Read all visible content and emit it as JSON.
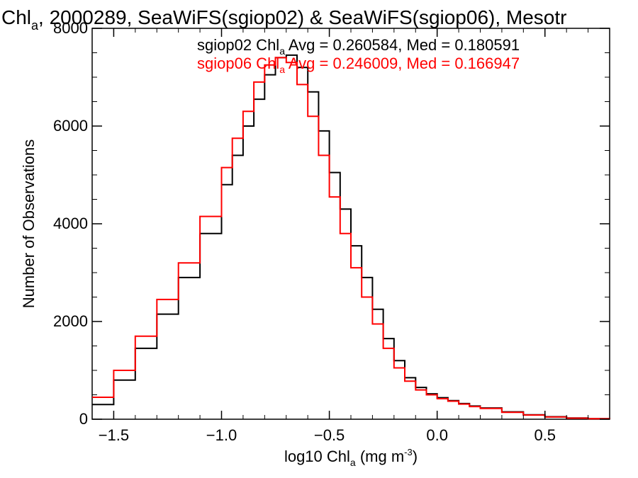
{
  "chart_data": {
    "type": "line",
    "title_main": "Chl",
    "title_sub": "a",
    "title_rest": ", 2000289, SeaWiFS(sgiop02) & SeaWiFS(sgiop06), Mesotr",
    "xlabel_main": "log10 Chl",
    "xlabel_sub": "a",
    "xlabel_units": " (mg m",
    "xlabel_sup": "-3",
    "xlabel_close": ")",
    "ylabel": "Number of Observations",
    "xlim": [
      -1.6,
      0.8
    ],
    "ylim": [
      0,
      8000
    ],
    "x_ticks": [
      -1.5,
      -1.0,
      -0.5,
      0.0,
      0.5
    ],
    "x_tick_labels": [
      "−1.5",
      "−1.0",
      "−0.5",
      "0.0",
      "0.5"
    ],
    "y_ticks": [
      0,
      2000,
      4000,
      6000,
      8000
    ],
    "y_tick_labels": [
      "0",
      "2000",
      "4000",
      "6000",
      "8000"
    ],
    "legend_placement": "top-center",
    "annotations": [
      {
        "line_prefix": "sgiop02 Chl",
        "line_sub": "a",
        "line_rest": " Avg = 0.260584, Med = 0.180591",
        "color": "#000000"
      },
      {
        "line_prefix": "sgiop06 Chl",
        "line_sub": "a",
        "line_rest": " Avg = 0.246009, Med = 0.166947",
        "color": "#ff0000"
      }
    ],
    "series": [
      {
        "name": "sgiop02",
        "color": "#000000",
        "x": [
          -1.6,
          -1.5,
          -1.4,
          -1.3,
          -1.2,
          -1.1,
          -1.0,
          -0.95,
          -0.9,
          -0.85,
          -0.8,
          -0.75,
          -0.7,
          -0.65,
          -0.6,
          -0.55,
          -0.5,
          -0.45,
          -0.4,
          -0.35,
          -0.3,
          -0.25,
          -0.2,
          -0.15,
          -0.1,
          -0.05,
          0.0,
          0.05,
          0.1,
          0.15,
          0.2,
          0.3,
          0.4,
          0.5,
          0.6,
          0.7,
          0.8
        ],
        "y": [
          300,
          800,
          1450,
          2150,
          2900,
          3800,
          4800,
          5400,
          6000,
          6550,
          7050,
          7400,
          7450,
          7200,
          6700,
          5900,
          5050,
          4300,
          3550,
          2900,
          2250,
          1650,
          1200,
          850,
          650,
          520,
          440,
          380,
          320,
          270,
          230,
          150,
          90,
          50,
          25,
          12,
          5
        ]
      },
      {
        "name": "sgiop06",
        "color": "#ff0000",
        "x": [
          -1.6,
          -1.5,
          -1.4,
          -1.3,
          -1.2,
          -1.1,
          -1.0,
          -0.95,
          -0.9,
          -0.85,
          -0.8,
          -0.75,
          -0.7,
          -0.65,
          -0.6,
          -0.55,
          -0.5,
          -0.45,
          -0.4,
          -0.35,
          -0.3,
          -0.25,
          -0.2,
          -0.15,
          -0.1,
          -0.05,
          0.0,
          0.05,
          0.1,
          0.15,
          0.2,
          0.3,
          0.4,
          0.5,
          0.6,
          0.7,
          0.8
        ],
        "y": [
          450,
          1000,
          1700,
          2450,
          3200,
          4150,
          5150,
          5750,
          6300,
          6900,
          7250,
          7400,
          7300,
          6850,
          6200,
          5400,
          4550,
          3800,
          3100,
          2500,
          1950,
          1450,
          1050,
          780,
          600,
          500,
          420,
          370,
          310,
          260,
          220,
          140,
          85,
          45,
          22,
          10,
          4
        ]
      }
    ]
  }
}
